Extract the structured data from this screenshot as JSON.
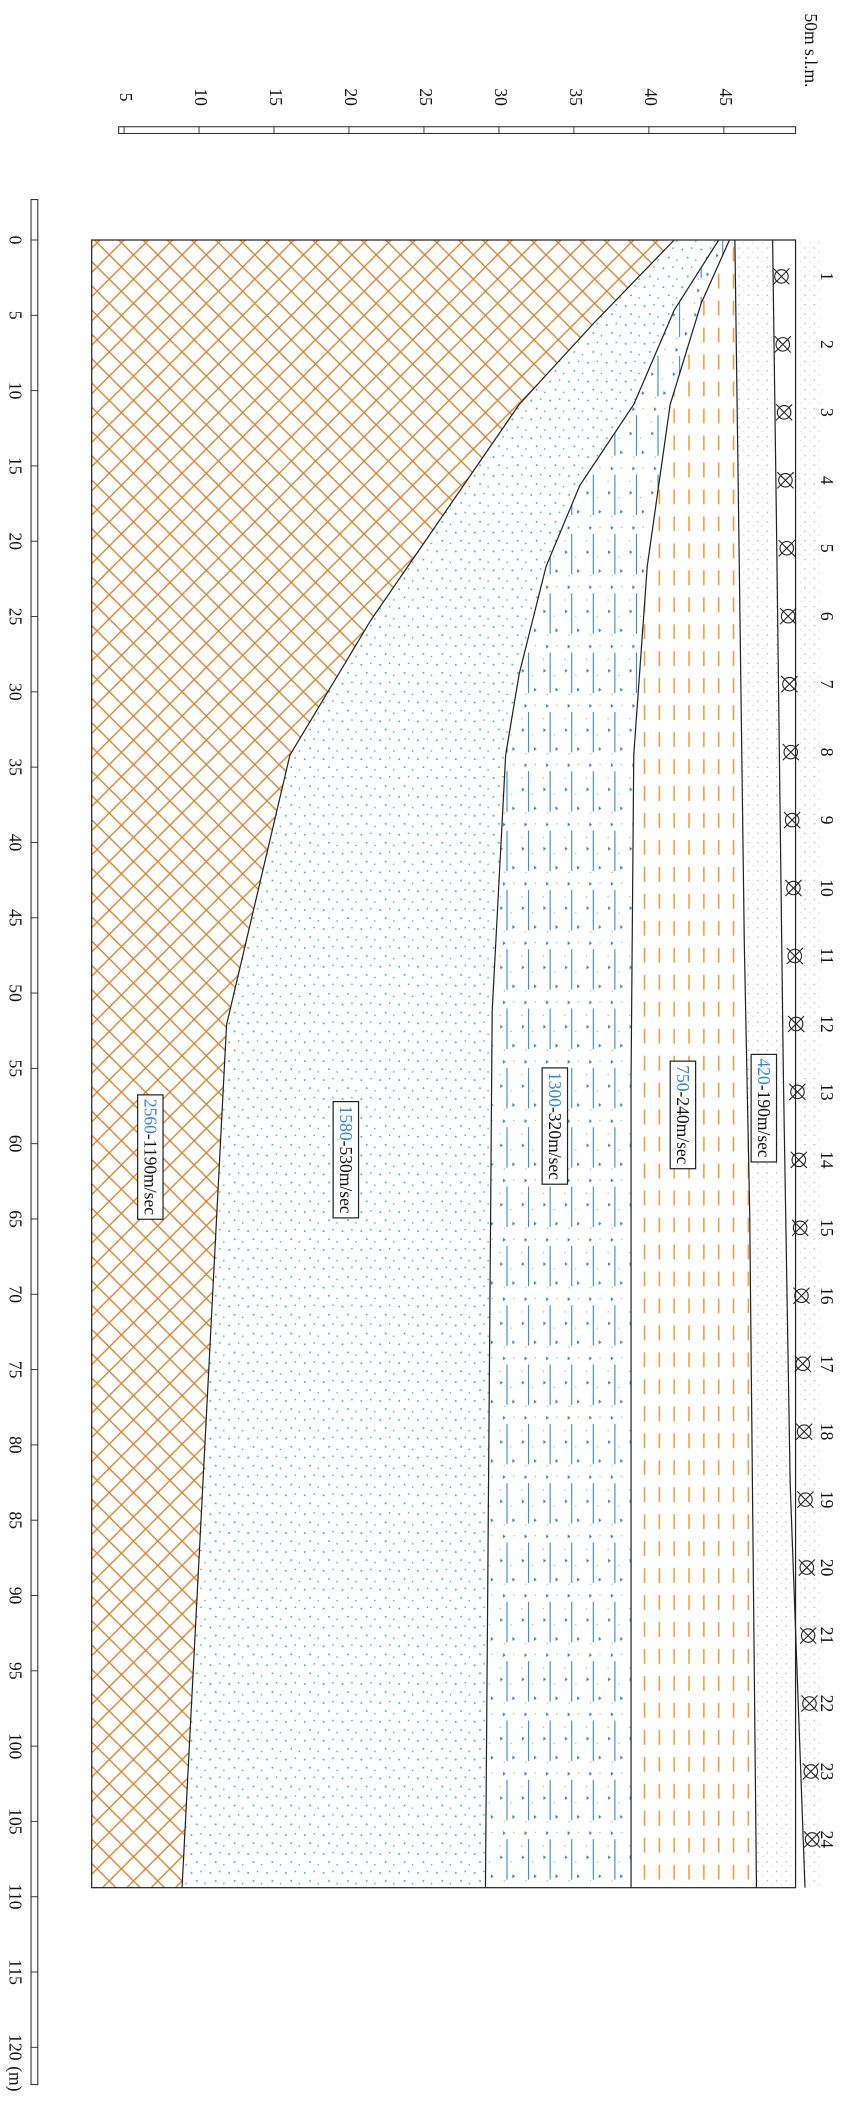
{
  "elevation_axis": {
    "title": "50m s.l.m.",
    "ticks": [
      5,
      10,
      15,
      20,
      25,
      30,
      35,
      40,
      45
    ]
  },
  "distance_axis": {
    "ticks": [
      0,
      5,
      10,
      15,
      20,
      25,
      30,
      35,
      40,
      45,
      50,
      55,
      60,
      65,
      70,
      75,
      80,
      85,
      90,
      95,
      100,
      105,
      110,
      115,
      120
    ],
    "unit": "(m)"
  },
  "geophones": [
    1,
    2,
    3,
    4,
    5,
    6,
    7,
    8,
    9,
    10,
    11,
    12,
    13,
    14,
    15,
    16,
    17,
    18,
    19,
    20,
    21,
    22,
    23,
    24
  ],
  "layers": [
    {
      "velocity": "420",
      "range": "-190m/sec"
    },
    {
      "velocity": "750",
      "range": "-240m/sec"
    },
    {
      "velocity": "1300",
      "range": "-320m/sec"
    },
    {
      "velocity": "1580",
      "range": "-530m/sec"
    },
    {
      "velocity": "2560",
      "range": "-1190m/sec"
    }
  ]
}
